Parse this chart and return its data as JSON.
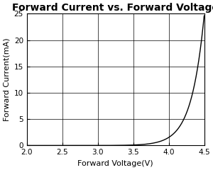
{
  "title": "Forward Current vs. Forward Voltage",
  "xlabel": "Forward Voltage(V)",
  "ylabel": "Forward Current(mA)",
  "xlim": [
    2.0,
    4.5
  ],
  "ylim": [
    0,
    25
  ],
  "xticks": [
    2.0,
    2.5,
    3.0,
    3.5,
    4.0,
    4.5
  ],
  "yticks": [
    0,
    5,
    10,
    15,
    20,
    25
  ],
  "line_color": "#000000",
  "background_color": "#ffffff",
  "grid_color": "#000000",
  "title_fontsize": 10,
  "label_fontsize": 8,
  "tick_fontsize": 7.5,
  "diode_vt": 2.68,
  "diode_Is": 1e-06,
  "diode_n_vt": 0.18
}
